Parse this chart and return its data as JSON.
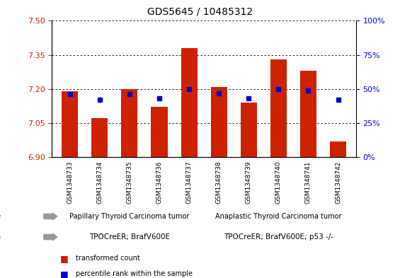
{
  "title": "GDS5645 / 10485312",
  "categories": [
    "GSM1348733",
    "GSM1348734",
    "GSM1348735",
    "GSM1348736",
    "GSM1348737",
    "GSM1348738",
    "GSM1348739",
    "GSM1348740",
    "GSM1348741",
    "GSM1348742"
  ],
  "bar_values": [
    7.19,
    7.07,
    7.2,
    7.12,
    7.38,
    7.21,
    7.14,
    7.33,
    7.28,
    6.97
  ],
  "percentile_values": [
    46,
    42,
    46,
    43,
    50,
    47,
    43,
    50,
    49,
    42
  ],
  "ymin": 6.9,
  "ymax": 7.5,
  "bar_color": "#cc2200",
  "blue_color": "#0000cc",
  "tissue_labels": [
    "Papillary Thyroid Carcinoma tumor",
    "Anaplastic Thyroid Carcinoma tumor"
  ],
  "tissue_color": "#88ee88",
  "genotype_labels": [
    "TPOCreER; BrafV600E",
    "TPOCreER; BrafV600E; p53 -/-"
  ],
  "genotype_color": "#ee88ee",
  "tick_bg_color": "#cccccc",
  "yticks_left": [
    6.9,
    7.05,
    7.2,
    7.35,
    7.5
  ],
  "right_yticks": [
    0,
    25,
    50,
    75,
    100
  ],
  "legend_red": "transformed count",
  "legend_blue": "percentile rank within the sample",
  "figsize": [
    5.65,
    3.93
  ],
  "dpi": 100
}
